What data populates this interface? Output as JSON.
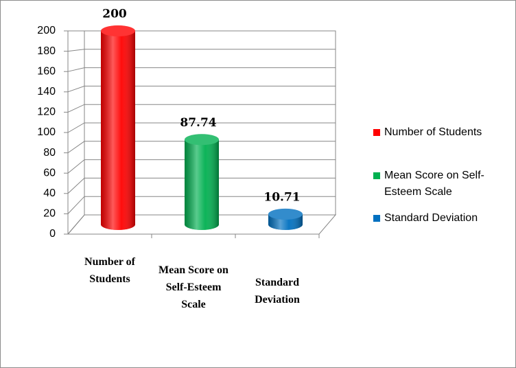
{
  "chart_data": {
    "type": "bar",
    "categories": [
      "Number of Students",
      "Mean Score on Self-Esteem Scale",
      "Standard Deviation"
    ],
    "series": [
      {
        "name": "Number of Students",
        "color": "#ff0000",
        "values": [
          200,
          null,
          null
        ]
      },
      {
        "name": "Mean Score on Self-Esteem Scale",
        "color": "#00b050",
        "values": [
          null,
          87.74,
          null
        ]
      },
      {
        "name": "Standard Deviation",
        "color": "#0070c0",
        "values": [
          null,
          null,
          10.71
        ]
      }
    ],
    "ylim": [
      0,
      200
    ],
    "yticks": [
      0,
      20,
      40,
      60,
      80,
      100,
      120,
      140,
      160,
      180,
      200
    ],
    "grid": true,
    "legend": "right"
  }
}
